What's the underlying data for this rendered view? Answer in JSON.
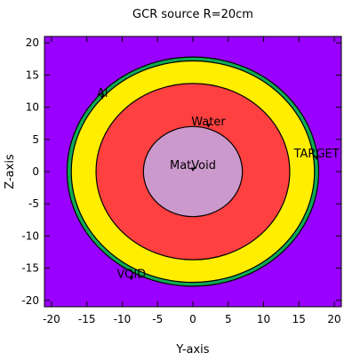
{
  "title": "GCR source R=20cm",
  "chart_data": {
    "type": "geometry-slice",
    "title": "GCR source R=20cm",
    "xlabel": "Y-axis",
    "ylabel": "Z-axis",
    "xlim": [
      -21,
      21
    ],
    "ylim": [
      -21,
      21
    ],
    "xticks": [
      -20,
      -15,
      -10,
      -5,
      0,
      5,
      10,
      15,
      20
    ],
    "yticks": [
      -20,
      -15,
      -10,
      -5,
      0,
      5,
      10,
      15,
      20
    ],
    "background": {
      "label": "VOID",
      "color": "#9900ff"
    },
    "regions": [
      {
        "label": "Al",
        "outer_radius": 17.8,
        "color": "#11aa55"
      },
      {
        "label": "TARGET",
        "outer_radius": 17.2,
        "color": "#ffee00"
      },
      {
        "label": "Water",
        "outer_radius": 13.7,
        "color": "#ff4040"
      },
      {
        "label": "MatVoid",
        "outer_radius": 7.0,
        "color": "#cc99cc"
      }
    ],
    "labels": [
      {
        "text": "Al",
        "x": -12.8,
        "y": 11.2
      },
      {
        "text": "Water",
        "x": 2.2,
        "y": 6.8
      },
      {
        "text": "MatVoid",
        "x": 0.0,
        "y": 0.0
      },
      {
        "text": "TARGET",
        "x": 17.5,
        "y": 1.8
      },
      {
        "text": "VOID",
        "x": -8.7,
        "y": -16.9
      }
    ]
  }
}
